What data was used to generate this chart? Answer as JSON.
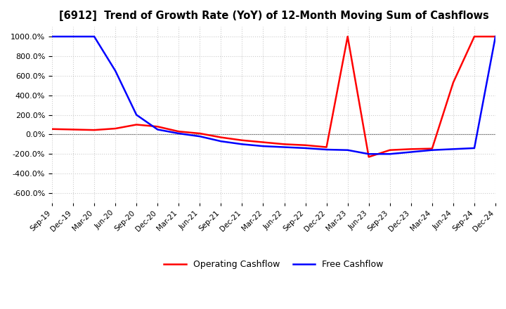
{
  "title": "[6912]  Trend of Growth Rate (YoY) of 12-Month Moving Sum of Cashflows",
  "ylim": [
    -700,
    1100
  ],
  "yticks": [
    -600,
    -400,
    -200,
    0,
    200,
    400,
    600,
    800,
    1000
  ],
  "legend": [
    "Operating Cashflow",
    "Free Cashflow"
  ],
  "line_colors": [
    "red",
    "blue"
  ],
  "background_color": "#ffffff",
  "grid_color": "#cccccc",
  "grid_style": "dotted",
  "x_labels": [
    "Sep-19",
    "Dec-19",
    "Mar-20",
    "Jun-20",
    "Sep-20",
    "Dec-20",
    "Mar-21",
    "Jun-21",
    "Sep-21",
    "Dec-21",
    "Mar-22",
    "Jun-22",
    "Sep-22",
    "Dec-22",
    "Mar-23",
    "Jun-23",
    "Sep-23",
    "Dec-23",
    "Mar-24",
    "Jun-24",
    "Sep-24",
    "Dec-24"
  ],
  "operating_cashflow": [
    55,
    50,
    45,
    60,
    100,
    80,
    30,
    10,
    -30,
    -60,
    -80,
    -100,
    -110,
    -130,
    1000,
    -230,
    -160,
    -150,
    -145,
    530,
    1000,
    1000
  ],
  "free_cashflow": [
    1000,
    1000,
    1000,
    650,
    200,
    50,
    10,
    -20,
    -70,
    -100,
    -120,
    -130,
    -140,
    -155,
    -160,
    -200,
    -200,
    -180,
    -160,
    -150,
    -140,
    1000
  ]
}
